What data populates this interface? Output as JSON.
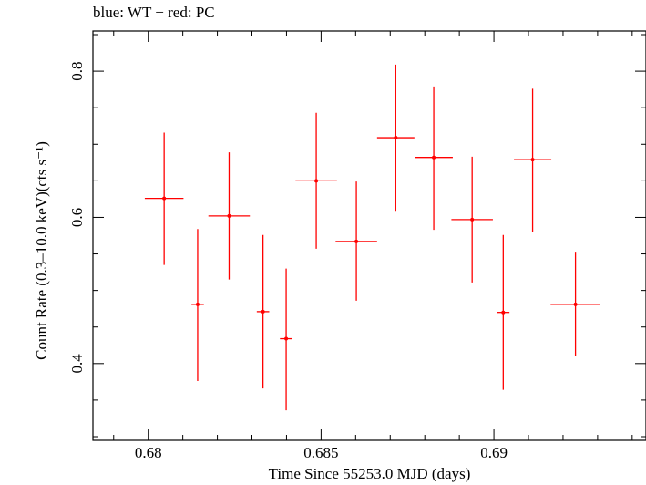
{
  "chart_data": {
    "type": "scatter",
    "title": "blue: WT − red: PC",
    "xlabel": "Time Since 55253.0 MJD (days)",
    "ylabel": "Count Rate (0.3–10.0 keV)(cts s⁻¹)",
    "xlim": [
      0.6784,
      0.6944
    ],
    "ylim": [
      0.295,
      0.855
    ],
    "xticks": [
      0.68,
      0.685,
      0.69
    ],
    "xtick_labels": [
      "0.68",
      "0.685",
      "0.69"
    ],
    "yticks": [
      0.4,
      0.6,
      0.8
    ],
    "ytick_labels": [
      "0.4",
      "0.6",
      "0.8"
    ],
    "grid": false,
    "legend": "none",
    "series": [
      {
        "color": "#ff0000",
        "points": [
          {
            "x": 0.68046,
            "y": 0.626,
            "xerr": 0.00056,
            "ylo": 0.535,
            "yhi": 0.716
          },
          {
            "x": 0.68143,
            "y": 0.481,
            "xerr": 0.00018,
            "ylo": 0.376,
            "yhi": 0.584
          },
          {
            "x": 0.68234,
            "y": 0.602,
            "xerr": 0.0006,
            "ylo": 0.515,
            "yhi": 0.689
          },
          {
            "x": 0.68332,
            "y": 0.471,
            "xerr": 0.00018,
            "ylo": 0.366,
            "yhi": 0.576
          },
          {
            "x": 0.68399,
            "y": 0.434,
            "xerr": 0.00018,
            "ylo": 0.336,
            "yhi": 0.53
          },
          {
            "x": 0.68486,
            "y": 0.65,
            "xerr": 0.0006,
            "ylo": 0.557,
            "yhi": 0.743
          },
          {
            "x": 0.68602,
            "y": 0.567,
            "xerr": 0.0006,
            "ylo": 0.486,
            "yhi": 0.649
          },
          {
            "x": 0.68716,
            "y": 0.709,
            "xerr": 0.00054,
            "ylo": 0.609,
            "yhi": 0.809
          },
          {
            "x": 0.68826,
            "y": 0.682,
            "xerr": 0.00055,
            "ylo": 0.583,
            "yhi": 0.779
          },
          {
            "x": 0.68937,
            "y": 0.597,
            "xerr": 0.0006,
            "ylo": 0.511,
            "yhi": 0.683
          },
          {
            "x": 0.69027,
            "y": 0.47,
            "xerr": 0.00018,
            "ylo": 0.364,
            "yhi": 0.576
          },
          {
            "x": 0.69112,
            "y": 0.679,
            "xerr": 0.00054,
            "ylo": 0.58,
            "yhi": 0.776
          },
          {
            "x": 0.69236,
            "y": 0.481,
            "xerr": 0.00072,
            "ylo": 0.41,
            "yhi": 0.553
          }
        ]
      }
    ]
  }
}
